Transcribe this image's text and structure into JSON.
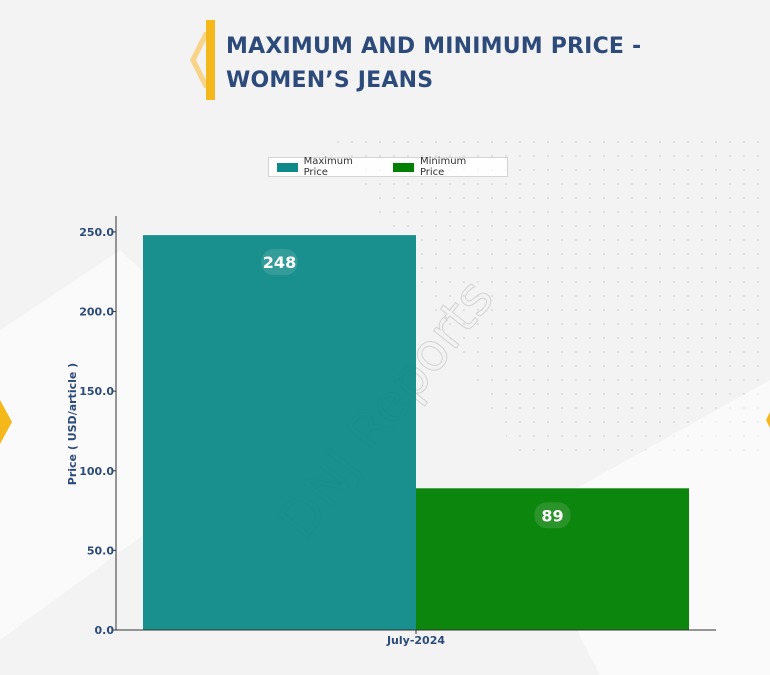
{
  "header": {
    "title_line1": "MAXIMUM AND MINIMUM PRICE -",
    "title_line2": "WOMEN’S JEANS"
  },
  "watermark": "DNJ Reports",
  "colors": {
    "max": "#0d8a87",
    "min": "#008000",
    "accent": "#f5b81a",
    "title": "#2c4a7a"
  },
  "chart_data": {
    "type": "bar",
    "title": "MAXIMUM AND MINIMUM PRICE - WOMEN’S JEANS",
    "categories": [
      "July-2024"
    ],
    "series": [
      {
        "name": "Maximum Price",
        "values": [
          248
        ],
        "color": "#0d8a87"
      },
      {
        "name": "Minimum Price",
        "values": [
          89
        ],
        "color": "#008000"
      }
    ],
    "xlabel": "",
    "ylabel": "Price ( USD/article )",
    "ylim": [
      0,
      260
    ],
    "yticks": [
      "0.0",
      "50.0",
      "100.0",
      "150.0",
      "200.0",
      "250.0"
    ],
    "legend": "top-center",
    "grid": false
  }
}
